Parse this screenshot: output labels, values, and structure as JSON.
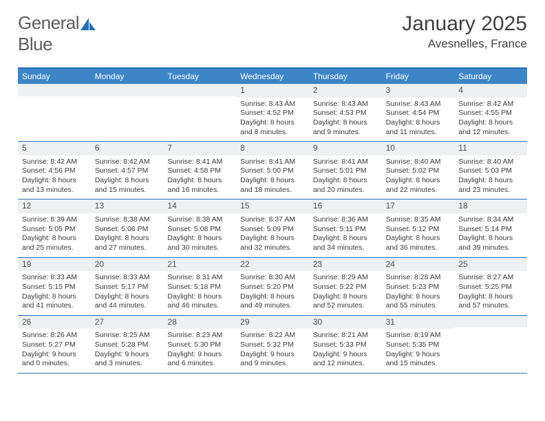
{
  "logo": {
    "text_left": "General",
    "text_right": "Blue",
    "sail_color": "#2a6fb5"
  },
  "title": "January 2025",
  "subtitle": "Avesnelles, France",
  "colors": {
    "header_bg": "#3d85c6",
    "border": "#2a6fb5",
    "daynum_bg": "#eef0f2",
    "text": "#3a3a3a",
    "title_text": "#404040",
    "logo_text": "#5c5c5c"
  },
  "typography": {
    "title_fontsize": 30,
    "subtitle_fontsize": 17,
    "dow_fontsize": 12,
    "cell_fontsize": 10.5
  },
  "days_of_week": [
    "Sunday",
    "Monday",
    "Tuesday",
    "Wednesday",
    "Thursday",
    "Friday",
    "Saturday"
  ],
  "weeks": [
    [
      null,
      null,
      null,
      {
        "n": "1",
        "sunrise": "8:43 AM",
        "sunset": "4:52 PM",
        "daylight": "8 hours and 8 minutes."
      },
      {
        "n": "2",
        "sunrise": "8:43 AM",
        "sunset": "4:53 PM",
        "daylight": "8 hours and 9 minutes."
      },
      {
        "n": "3",
        "sunrise": "8:43 AM",
        "sunset": "4:54 PM",
        "daylight": "8 hours and 11 minutes."
      },
      {
        "n": "4",
        "sunrise": "8:42 AM",
        "sunset": "4:55 PM",
        "daylight": "8 hours and 12 minutes."
      }
    ],
    [
      {
        "n": "5",
        "sunrise": "8:42 AM",
        "sunset": "4:56 PM",
        "daylight": "8 hours and 13 minutes."
      },
      {
        "n": "6",
        "sunrise": "8:42 AM",
        "sunset": "4:57 PM",
        "daylight": "8 hours and 15 minutes."
      },
      {
        "n": "7",
        "sunrise": "8:41 AM",
        "sunset": "4:58 PM",
        "daylight": "8 hours and 16 minutes."
      },
      {
        "n": "8",
        "sunrise": "8:41 AM",
        "sunset": "5:00 PM",
        "daylight": "8 hours and 18 minutes."
      },
      {
        "n": "9",
        "sunrise": "8:41 AM",
        "sunset": "5:01 PM",
        "daylight": "8 hours and 20 minutes."
      },
      {
        "n": "10",
        "sunrise": "8:40 AM",
        "sunset": "5:02 PM",
        "daylight": "8 hours and 22 minutes."
      },
      {
        "n": "11",
        "sunrise": "8:40 AM",
        "sunset": "5:03 PM",
        "daylight": "8 hours and 23 minutes."
      }
    ],
    [
      {
        "n": "12",
        "sunrise": "8:39 AM",
        "sunset": "5:05 PM",
        "daylight": "8 hours and 25 minutes."
      },
      {
        "n": "13",
        "sunrise": "8:38 AM",
        "sunset": "5:06 PM",
        "daylight": "8 hours and 27 minutes."
      },
      {
        "n": "14",
        "sunrise": "8:38 AM",
        "sunset": "5:08 PM",
        "daylight": "8 hours and 30 minutes."
      },
      {
        "n": "15",
        "sunrise": "8:37 AM",
        "sunset": "5:09 PM",
        "daylight": "8 hours and 32 minutes."
      },
      {
        "n": "16",
        "sunrise": "8:36 AM",
        "sunset": "5:11 PM",
        "daylight": "8 hours and 34 minutes."
      },
      {
        "n": "17",
        "sunrise": "8:35 AM",
        "sunset": "5:12 PM",
        "daylight": "8 hours and 36 minutes."
      },
      {
        "n": "18",
        "sunrise": "8:34 AM",
        "sunset": "5:14 PM",
        "daylight": "8 hours and 39 minutes."
      }
    ],
    [
      {
        "n": "19",
        "sunrise": "8:33 AM",
        "sunset": "5:15 PM",
        "daylight": "8 hours and 41 minutes."
      },
      {
        "n": "20",
        "sunrise": "8:33 AM",
        "sunset": "5:17 PM",
        "daylight": "8 hours and 44 minutes."
      },
      {
        "n": "21",
        "sunrise": "8:31 AM",
        "sunset": "5:18 PM",
        "daylight": "8 hours and 46 minutes."
      },
      {
        "n": "22",
        "sunrise": "8:30 AM",
        "sunset": "5:20 PM",
        "daylight": "8 hours and 49 minutes."
      },
      {
        "n": "23",
        "sunrise": "8:29 AM",
        "sunset": "5:22 PM",
        "daylight": "8 hours and 52 minutes."
      },
      {
        "n": "24",
        "sunrise": "8:28 AM",
        "sunset": "5:23 PM",
        "daylight": "8 hours and 55 minutes."
      },
      {
        "n": "25",
        "sunrise": "8:27 AM",
        "sunset": "5:25 PM",
        "daylight": "8 hours and 57 minutes."
      }
    ],
    [
      {
        "n": "26",
        "sunrise": "8:26 AM",
        "sunset": "5:27 PM",
        "daylight": "9 hours and 0 minutes."
      },
      {
        "n": "27",
        "sunrise": "8:25 AM",
        "sunset": "5:28 PM",
        "daylight": "9 hours and 3 minutes."
      },
      {
        "n": "28",
        "sunrise": "8:23 AM",
        "sunset": "5:30 PM",
        "daylight": "9 hours and 6 minutes."
      },
      {
        "n": "29",
        "sunrise": "8:22 AM",
        "sunset": "5:32 PM",
        "daylight": "9 hours and 9 minutes."
      },
      {
        "n": "30",
        "sunrise": "8:21 AM",
        "sunset": "5:33 PM",
        "daylight": "9 hours and 12 minutes."
      },
      {
        "n": "31",
        "sunrise": "8:19 AM",
        "sunset": "5:35 PM",
        "daylight": "9 hours and 15 minutes."
      },
      null
    ]
  ],
  "labels": {
    "sunrise": "Sunrise:",
    "sunset": "Sunset:",
    "daylight": "Daylight:"
  }
}
